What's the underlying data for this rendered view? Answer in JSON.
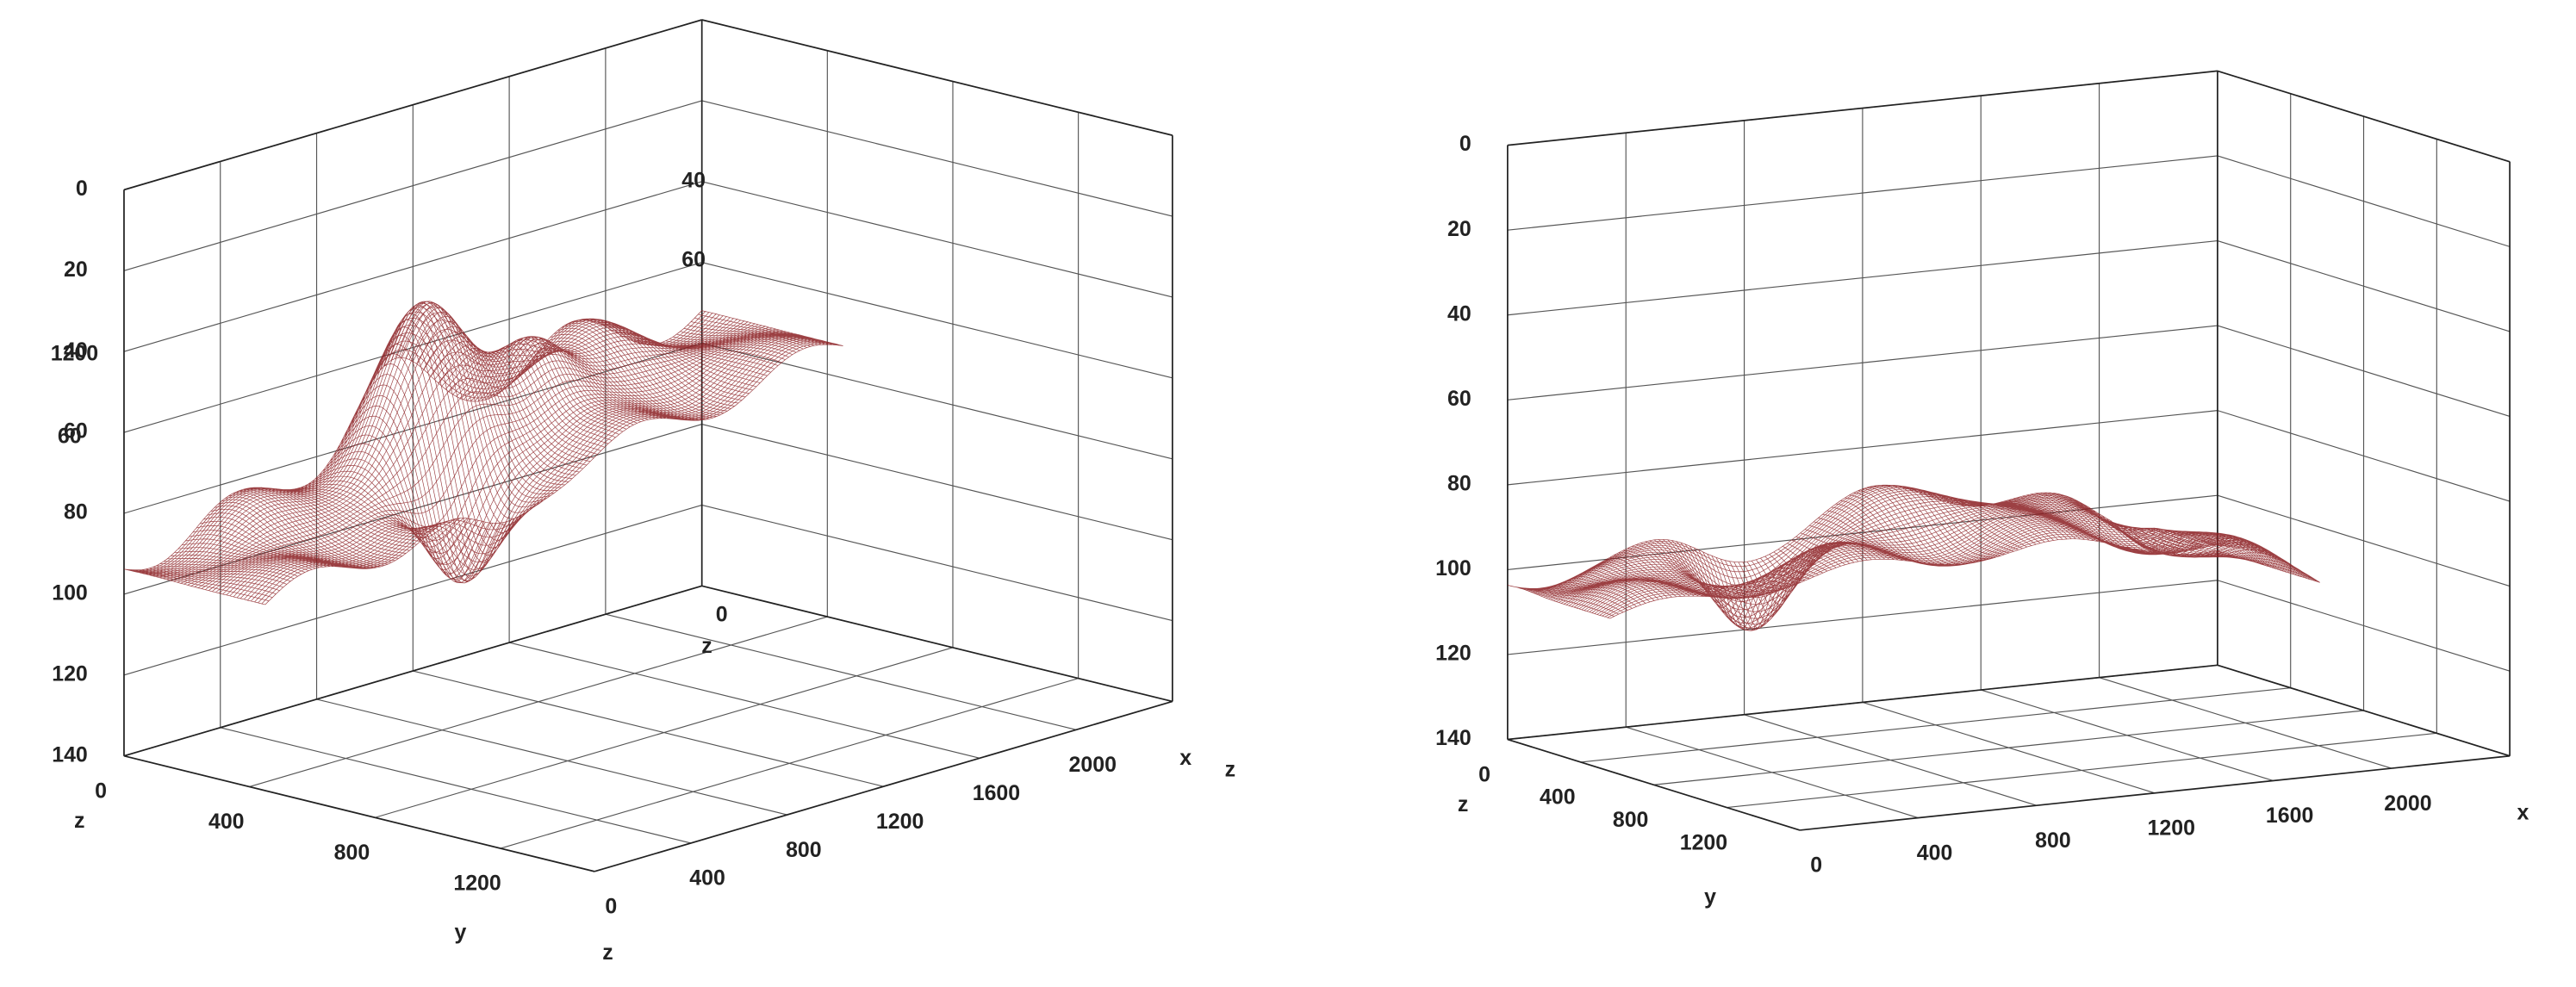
{
  "chart_data": [
    {
      "type": "surface",
      "zlim": [
        0,
        140
      ],
      "zticks": [
        0,
        20,
        40,
        60,
        80,
        100,
        120,
        140
      ],
      "ylim": [
        0,
        1500
      ],
      "yticks": [
        0,
        400,
        800,
        1200
      ],
      "xlim": [
        0,
        2400
      ],
      "xticks": [
        0,
        400,
        800,
        1200,
        1600,
        2000
      ],
      "z_label": "z",
      "y_label": "y",
      "x_label": "x",
      "annotations": [
        "1200",
        "60",
        "40",
        "60",
        "0",
        "z",
        "z",
        "z"
      ],
      "color": "#8b1e22",
      "grid": true
    },
    {
      "type": "surface",
      "zlim": [
        0,
        140
      ],
      "zticks": [
        0,
        20,
        40,
        60,
        80,
        100,
        120,
        140
      ],
      "ylim": [
        0,
        1600
      ],
      "yticks": [
        0,
        400,
        800,
        1200
      ],
      "xlim": [
        0,
        2400
      ],
      "xticks": [
        0,
        400,
        800,
        1200,
        1600,
        2000
      ],
      "z_label": "z",
      "y_label": "y",
      "x_label": "x",
      "annotations": [],
      "color": "#8b1e22",
      "grid": true
    }
  ]
}
